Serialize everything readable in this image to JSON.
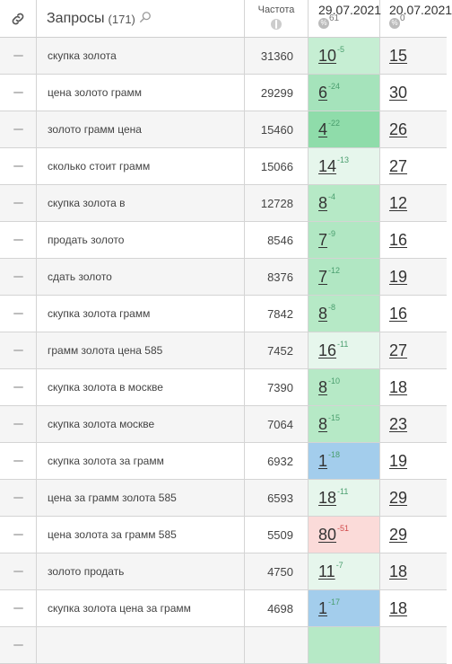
{
  "header": {
    "queries_label": "Запросы",
    "queries_count": "(171)",
    "frequency_label": "Частота",
    "date1": "29.07.2021",
    "date1_pct": "61",
    "date2": "20.07.2021",
    "date2_pct": "0",
    "pct_symbol": "%"
  },
  "colors": {
    "light_green": "#e6f6ec",
    "mid_green": "#bfeccd",
    "strong_green": "#8fdcaa",
    "blue": "#a3cdec",
    "pink": "#fbdbd9"
  },
  "rows": [
    {
      "query": "скупка золота",
      "freq": "31360",
      "pos1": "10",
      "chg1": "-5",
      "pos2": "15",
      "bg": "#c6eed3"
    },
    {
      "query": "цена золото грамм",
      "freq": "29299",
      "pos1": "6",
      "chg1": "-24",
      "pos2": "30",
      "bg": "#a5e3bb"
    },
    {
      "query": "золото грамм цена",
      "freq": "15460",
      "pos1": "4",
      "chg1": "-22",
      "pos2": "26",
      "bg": "#8fdcaa"
    },
    {
      "query": "сколько стоит грамм",
      "freq": "15066",
      "pos1": "14",
      "chg1": "-13",
      "pos2": "27",
      "bg": "#e6f6ec"
    },
    {
      "query": "скупка золота в",
      "freq": "12728",
      "pos1": "8",
      "chg1": "-4",
      "pos2": "12",
      "bg": "#b6e9c6"
    },
    {
      "query": "продать золото",
      "freq": "8546",
      "pos1": "7",
      "chg1": "-9",
      "pos2": "16",
      "bg": "#b1e7c3"
    },
    {
      "query": "сдать золото",
      "freq": "8376",
      "pos1": "7",
      "chg1": "-12",
      "pos2": "19",
      "bg": "#b1e7c3"
    },
    {
      "query": "скупка золота грамм",
      "freq": "7842",
      "pos1": "8",
      "chg1": "-8",
      "pos2": "16",
      "bg": "#b6e9c6"
    },
    {
      "query": "грамм золота цена 585",
      "freq": "7452",
      "pos1": "16",
      "chg1": "-11",
      "pos2": "27",
      "bg": "#e6f6ec"
    },
    {
      "query": "скупка золота в москве",
      "freq": "7390",
      "pos1": "8",
      "chg1": "-10",
      "pos2": "18",
      "bg": "#b6e9c6"
    },
    {
      "query": "скупка золота москве",
      "freq": "7064",
      "pos1": "8",
      "chg1": "-15",
      "pos2": "23",
      "bg": "#b6e9c6"
    },
    {
      "query": "скупка золота за грамм",
      "freq": "6932",
      "pos1": "1",
      "chg1": "-18",
      "pos2": "19",
      "bg": "#a3cdec"
    },
    {
      "query": "цена за грамм золота 585",
      "freq": "6593",
      "pos1": "18",
      "chg1": "-11",
      "pos2": "29",
      "bg": "#e6f6ec"
    },
    {
      "query": "цена золота за грамм 585",
      "freq": "5509",
      "pos1": "80",
      "chg1": "-51",
      "chg_color": "red",
      "pos2": "29",
      "bg": "#fbdbd9"
    },
    {
      "query": "золото продать",
      "freq": "4750",
      "pos1": "11",
      "chg1": "-7",
      "pos2": "18",
      "bg": "#e6f6ec"
    },
    {
      "query": "скупка золота цена за грамм",
      "freq": "4698",
      "pos1": "1",
      "chg1": "-17",
      "pos2": "18",
      "bg": "#a3cdec"
    },
    {
      "query": "",
      "freq": "",
      "pos1": "",
      "chg1": "",
      "pos2": "",
      "bg": "#b6e9c6"
    }
  ]
}
